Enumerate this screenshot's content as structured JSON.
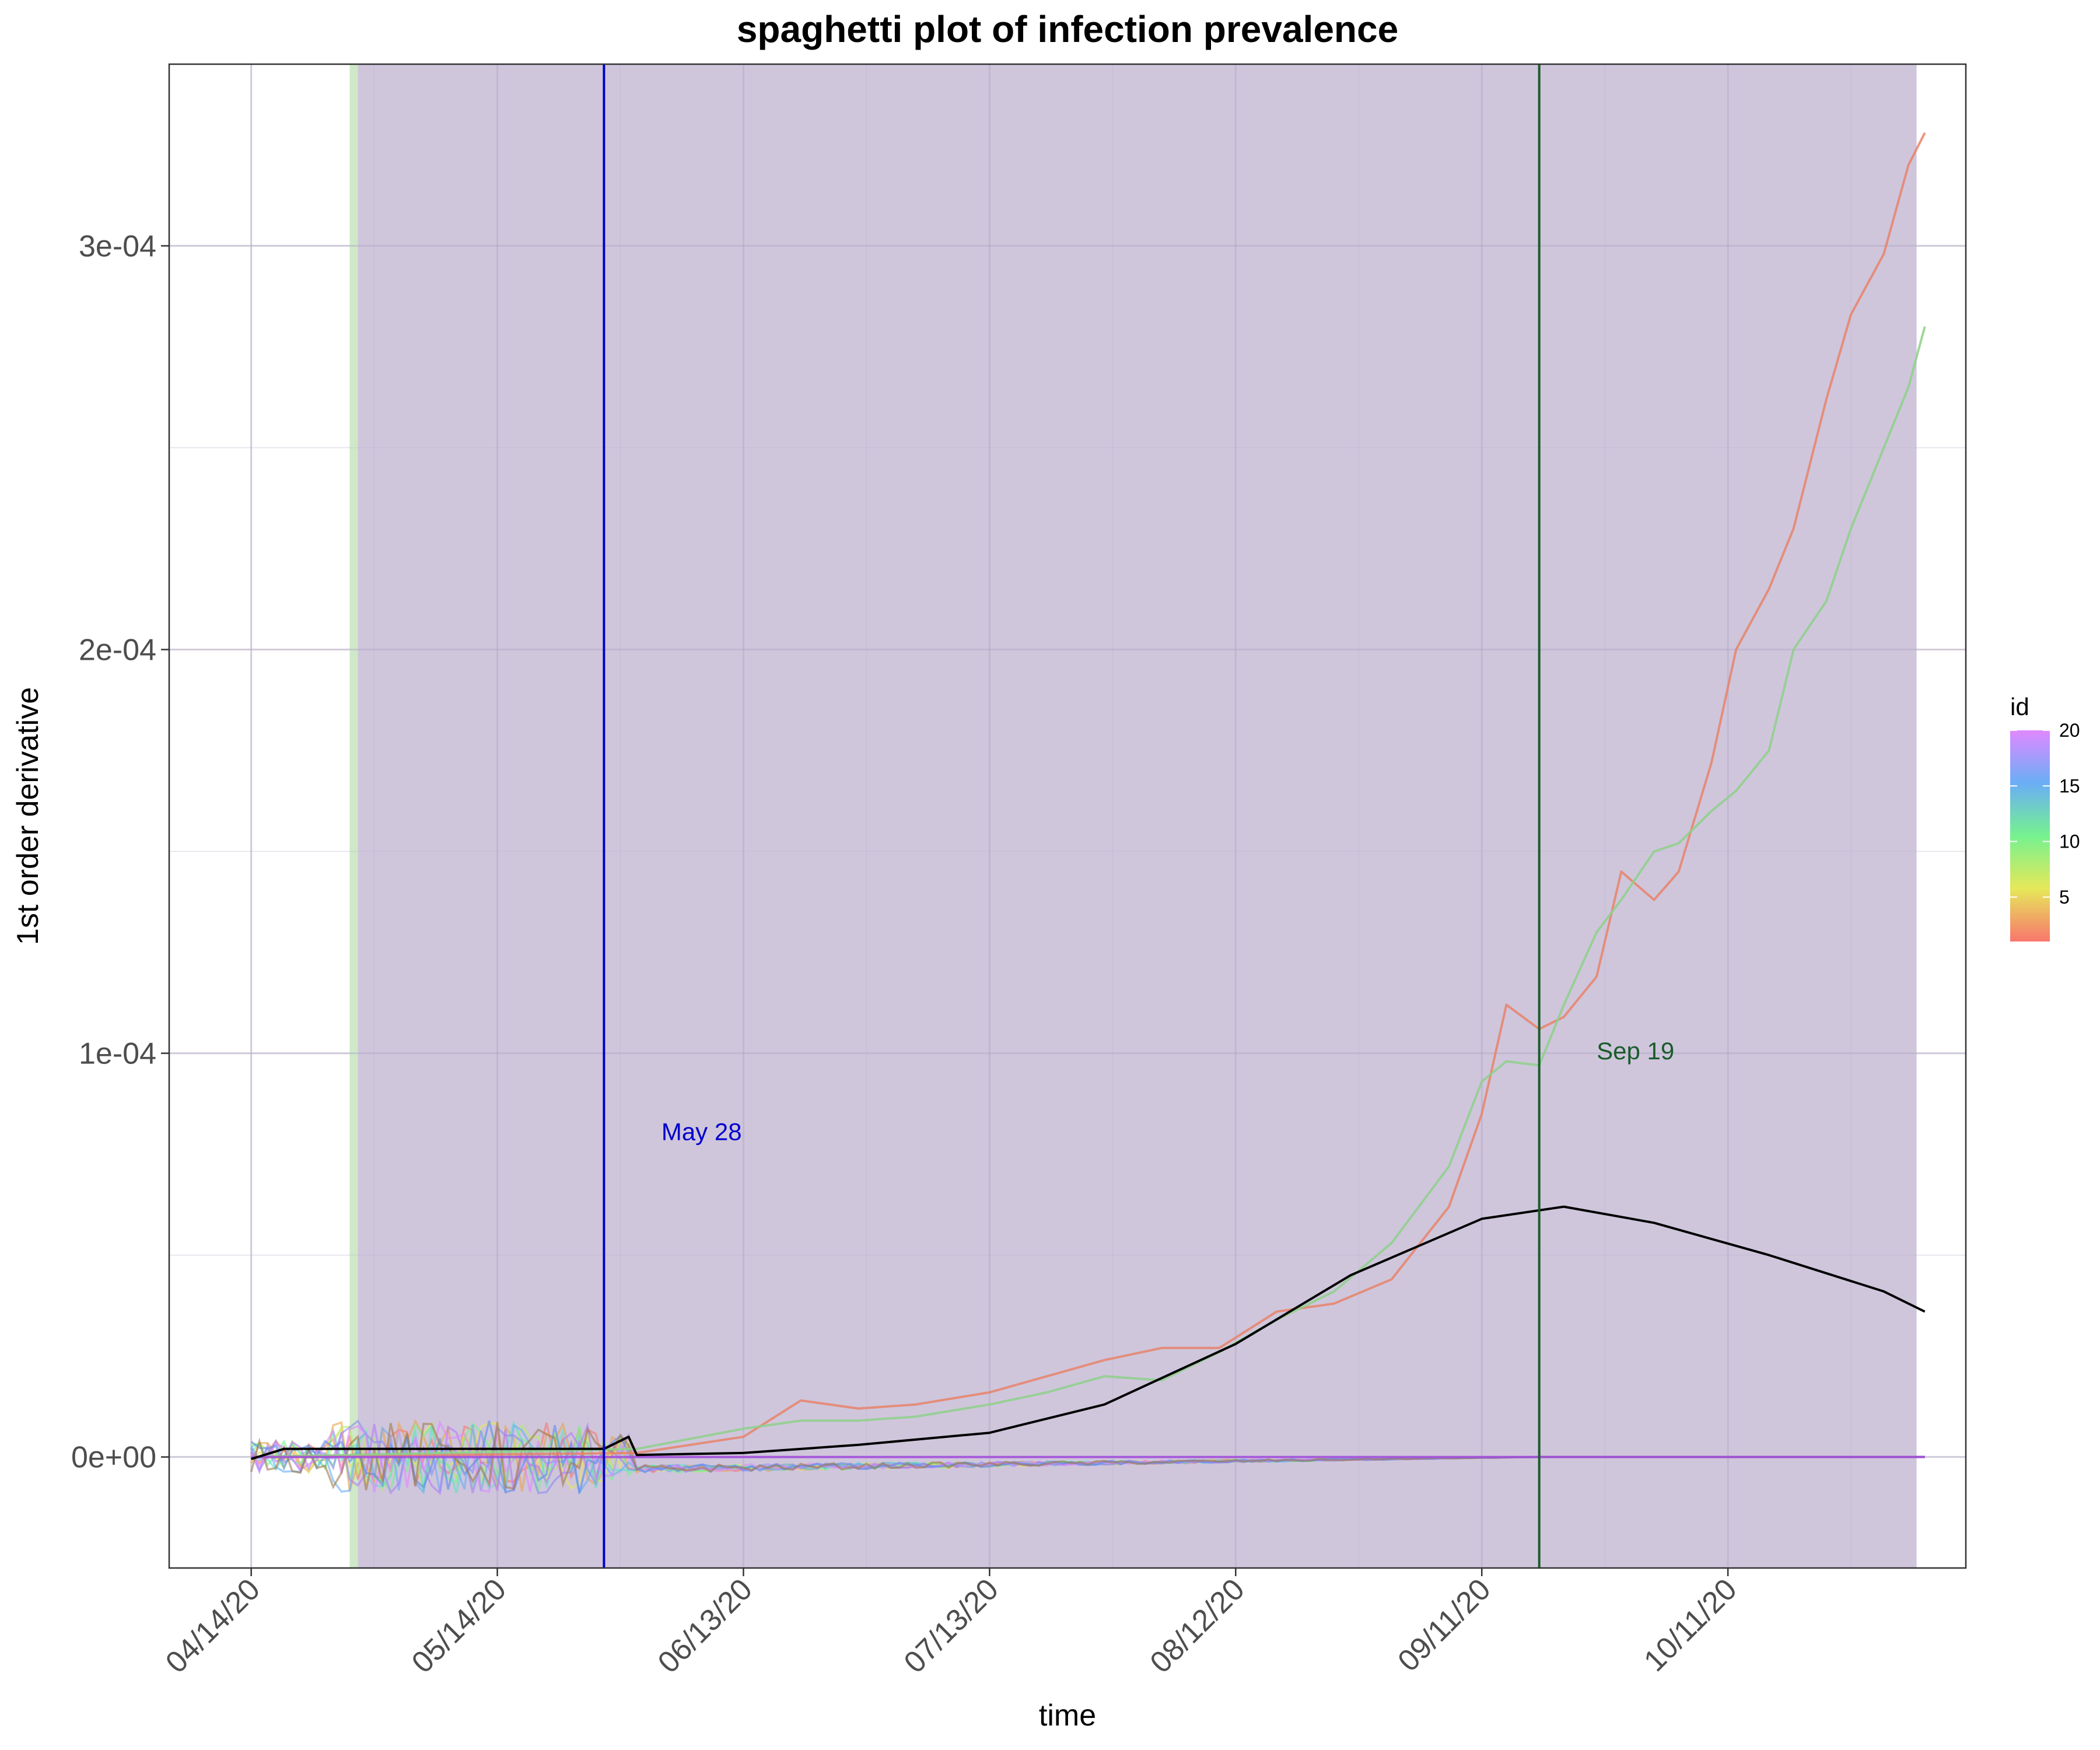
{
  "chart_data": {
    "type": "line",
    "title": "spaghetti plot of infection prevalence",
    "xlabel": "time",
    "ylabel": "1st order derivative",
    "x_range": [
      "2020-04-04",
      "2020-11-09"
    ],
    "ylim": [
      -2.75e-05,
      0.000345
    ],
    "x_ticks": [
      {
        "date": "2020-04-14",
        "label": "04/14/20"
      },
      {
        "date": "2020-05-14",
        "label": "05/14/20"
      },
      {
        "date": "2020-06-13",
        "label": "06/13/20"
      },
      {
        "date": "2020-07-13",
        "label": "07/13/20"
      },
      {
        "date": "2020-08-12",
        "label": "08/12/20"
      },
      {
        "date": "2020-09-11",
        "label": "09/11/20"
      },
      {
        "date": "2020-10-11",
        "label": "10/11/20"
      }
    ],
    "y_ticks": [
      {
        "value": 0,
        "label": "0e+00"
      },
      {
        "value": 0.0001,
        "label": "1e-04"
      },
      {
        "value": 0.0002,
        "label": "2e-04"
      },
      {
        "value": 0.0003,
        "label": "3e-04"
      }
    ],
    "grid": true,
    "shaded_regions": [
      {
        "start": "2020-04-26",
        "end": "2020-04-27",
        "color": "#cfe8c8"
      },
      {
        "start": "2020-04-27",
        "end": "2020-11-03",
        "color": "#cfc6dc"
      }
    ],
    "vlines": [
      {
        "date": "2020-05-27",
        "color": "#0000cc",
        "label": "May 28",
        "label_date": "2020-06-03",
        "label_value": 7.85e-05
      },
      {
        "date": "2020-09-18",
        "color": "#1a5c2a",
        "label": "Sep 19",
        "label_date": "2020-09-25",
        "label_value": 9.85e-05
      }
    ],
    "series": [
      {
        "id": 1,
        "color": "#e8836a",
        "x": [
          "2020-04-14",
          "2020-05-31",
          "2020-06-13",
          "2020-06-20",
          "2020-06-27",
          "2020-07-04",
          "2020-07-13",
          "2020-07-20",
          "2020-07-27",
          "2020-08-03",
          "2020-08-10",
          "2020-08-17",
          "2020-08-24",
          "2020-08-31",
          "2020-09-07",
          "2020-09-11",
          "2020-09-14",
          "2020-09-18",
          "2020-09-21",
          "2020-09-25",
          "2020-09-28",
          "2020-10-02",
          "2020-10-05",
          "2020-10-09",
          "2020-10-12",
          "2020-10-16",
          "2020-10-19",
          "2020-10-23",
          "2020-10-26",
          "2020-10-30",
          "2020-11-02",
          "2020-11-04"
        ],
        "y": [
          0,
          1e-06,
          5e-06,
          1.4e-05,
          1.2e-05,
          1.3e-05,
          1.6e-05,
          2e-05,
          2.4e-05,
          2.7e-05,
          2.7e-05,
          3.6e-05,
          3.8e-05,
          4.4e-05,
          6.2e-05,
          8.5e-05,
          0.000112,
          0.000106,
          0.000109,
          0.000119,
          0.000145,
          0.000138,
          0.000145,
          0.000172,
          0.0002,
          0.000215,
          0.00023,
          0.000262,
          0.000283,
          0.000298,
          0.00032,
          0.000328
        ]
      },
      {
        "id": 9,
        "color": "#8ed08a",
        "x": [
          "2020-04-14",
          "2020-05-31",
          "2020-06-13",
          "2020-06-20",
          "2020-06-27",
          "2020-07-04",
          "2020-07-13",
          "2020-07-20",
          "2020-07-27",
          "2020-08-03",
          "2020-08-10",
          "2020-08-17",
          "2020-08-24",
          "2020-08-31",
          "2020-09-07",
          "2020-09-11",
          "2020-09-14",
          "2020-09-18",
          "2020-09-21",
          "2020-09-25",
          "2020-09-28",
          "2020-10-02",
          "2020-10-05",
          "2020-10-09",
          "2020-10-12",
          "2020-10-16",
          "2020-10-19",
          "2020-10-23",
          "2020-10-26",
          "2020-10-30",
          "2020-11-02",
          "2020-11-04"
        ],
        "y": [
          0,
          2e-06,
          7e-06,
          9e-06,
          9e-06,
          1e-05,
          1.3e-05,
          1.6e-05,
          2e-05,
          1.9e-05,
          2.6e-05,
          3.4e-05,
          4.1e-05,
          5.3e-05,
          7.2e-05,
          9.3e-05,
          9.8e-05,
          9.7e-05,
          0.000112,
          0.00013,
          0.000138,
          0.00015,
          0.000152,
          0.00016,
          0.000165,
          0.000175,
          0.0002,
          0.000212,
          0.00023,
          0.00025,
          0.000265,
          0.00028
        ]
      },
      {
        "id": 20,
        "color": "#a24bdc",
        "x": [
          "2020-04-14",
          "2020-05-14",
          "2020-06-13",
          "2020-07-13",
          "2020-08-12",
          "2020-09-11",
          "2020-10-11",
          "2020-11-04"
        ],
        "y": [
          0,
          0,
          0,
          0,
          0,
          0,
          0,
          0
        ]
      },
      {
        "id": "mean",
        "color": "#000000",
        "x": [
          "2020-04-14",
          "2020-04-18",
          "2020-05-14",
          "2020-05-27",
          "2020-05-30",
          "2020-05-31",
          "2020-06-13",
          "2020-06-27",
          "2020-07-13",
          "2020-07-27",
          "2020-08-12",
          "2020-08-26",
          "2020-09-11",
          "2020-09-21",
          "2020-10-02",
          "2020-10-16",
          "2020-10-30",
          "2020-11-04"
        ],
        "y": [
          -5e-07,
          2e-06,
          2e-06,
          2e-06,
          5e-06,
          5e-07,
          1e-06,
          3e-06,
          6e-06,
          1.3e-05,
          2.8e-05,
          4.5e-05,
          5.9e-05,
          6.2e-05,
          5.8e-05,
          5e-05,
          4.1e-05,
          3.6e-05
        ]
      }
    ],
    "legend": {
      "title": "id",
      "type": "colorbar",
      "position": "right",
      "range": [
        1,
        20
      ],
      "ticks": [
        {
          "value": 5,
          "label": "5"
        },
        {
          "value": 10,
          "label": "10"
        },
        {
          "value": 15,
          "label": "15"
        },
        {
          "value": 20,
          "label": "20"
        }
      ],
      "colors": [
        "#f8766d",
        "#e6e85a",
        "#76f28f",
        "#6aaef6",
        "#e089ff"
      ]
    }
  }
}
